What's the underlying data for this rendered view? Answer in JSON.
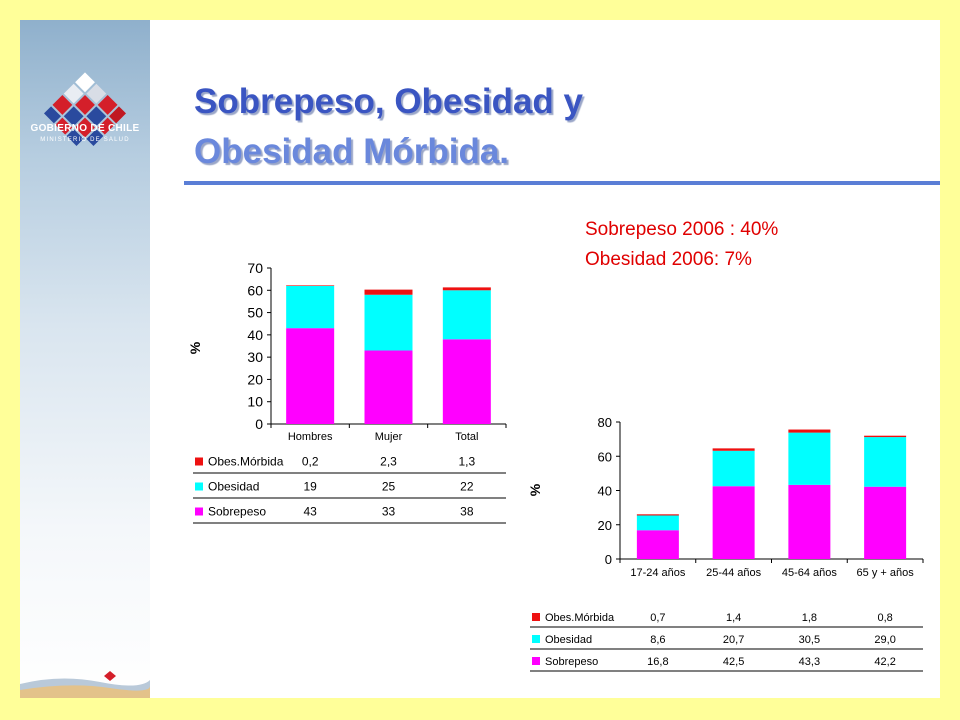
{
  "header": {
    "title_line1": "Sobrepeso, Obesidad y",
    "title_line2": "Obesidad Mórbida."
  },
  "logo": {
    "text": "GOBIERNO DE CHILE",
    "subtext": "MINISTERIO DE SALUD",
    "icon": "chilean-government-logo-icon"
  },
  "notes": {
    "line1": "Sobrepeso 2006 : 40%",
    "line2": "Obesidad 2006: 7%"
  },
  "colors": {
    "sobrepeso": "#ff00ff",
    "obesidad": "#00ffff",
    "obes_morbida": "#ee1111",
    "title_dark": "#3a55c2",
    "title_light": "#6a88dc",
    "rule": "#5a7ed6",
    "background": "#ffff99",
    "note": "#e00000"
  },
  "chart_data": [
    {
      "type": "bar",
      "stacked": true,
      "categories": [
        "Hombres",
        "Mujer",
        "Total"
      ],
      "series": [
        {
          "name": "Obes.Mórbida",
          "values": [
            0.2,
            2.3,
            1.3
          ],
          "labels": [
            "0,2",
            "2,3",
            "1,3"
          ]
        },
        {
          "name": "Obesidad",
          "values": [
            19,
            25,
            22
          ],
          "labels": [
            "19",
            "25",
            "22"
          ]
        },
        {
          "name": "Sobrepeso",
          "values": [
            43,
            33,
            38
          ],
          "labels": [
            "43",
            "33",
            "38"
          ]
        }
      ],
      "ylabel": "%",
      "ylim": [
        0,
        70
      ],
      "yticks": [
        0,
        10,
        20,
        30,
        40,
        50,
        60,
        70
      ],
      "legend": "data-table-below",
      "grid": false
    },
    {
      "type": "bar",
      "stacked": true,
      "categories": [
        "17-24 años",
        "25-44 años",
        "45-64 años",
        "65 y + años"
      ],
      "series": [
        {
          "name": "Obes.Mórbida",
          "values": [
            0.7,
            1.4,
            1.8,
            0.8
          ],
          "labels": [
            "0,7",
            "1,4",
            "1,8",
            "0,8"
          ]
        },
        {
          "name": "Obesidad",
          "values": [
            8.6,
            20.7,
            30.5,
            29.0
          ],
          "labels": [
            "8,6",
            "20,7",
            "30,5",
            "29,0"
          ]
        },
        {
          "name": "Sobrepeso",
          "values": [
            16.8,
            42.5,
            43.3,
            42.2
          ],
          "labels": [
            "16,8",
            "42,5",
            "43,3",
            "42,2"
          ]
        }
      ],
      "ylabel": "%",
      "ylim": [
        0,
        80
      ],
      "yticks": [
        0,
        20,
        40,
        60,
        80
      ],
      "legend": "data-table-below",
      "grid": false
    }
  ]
}
